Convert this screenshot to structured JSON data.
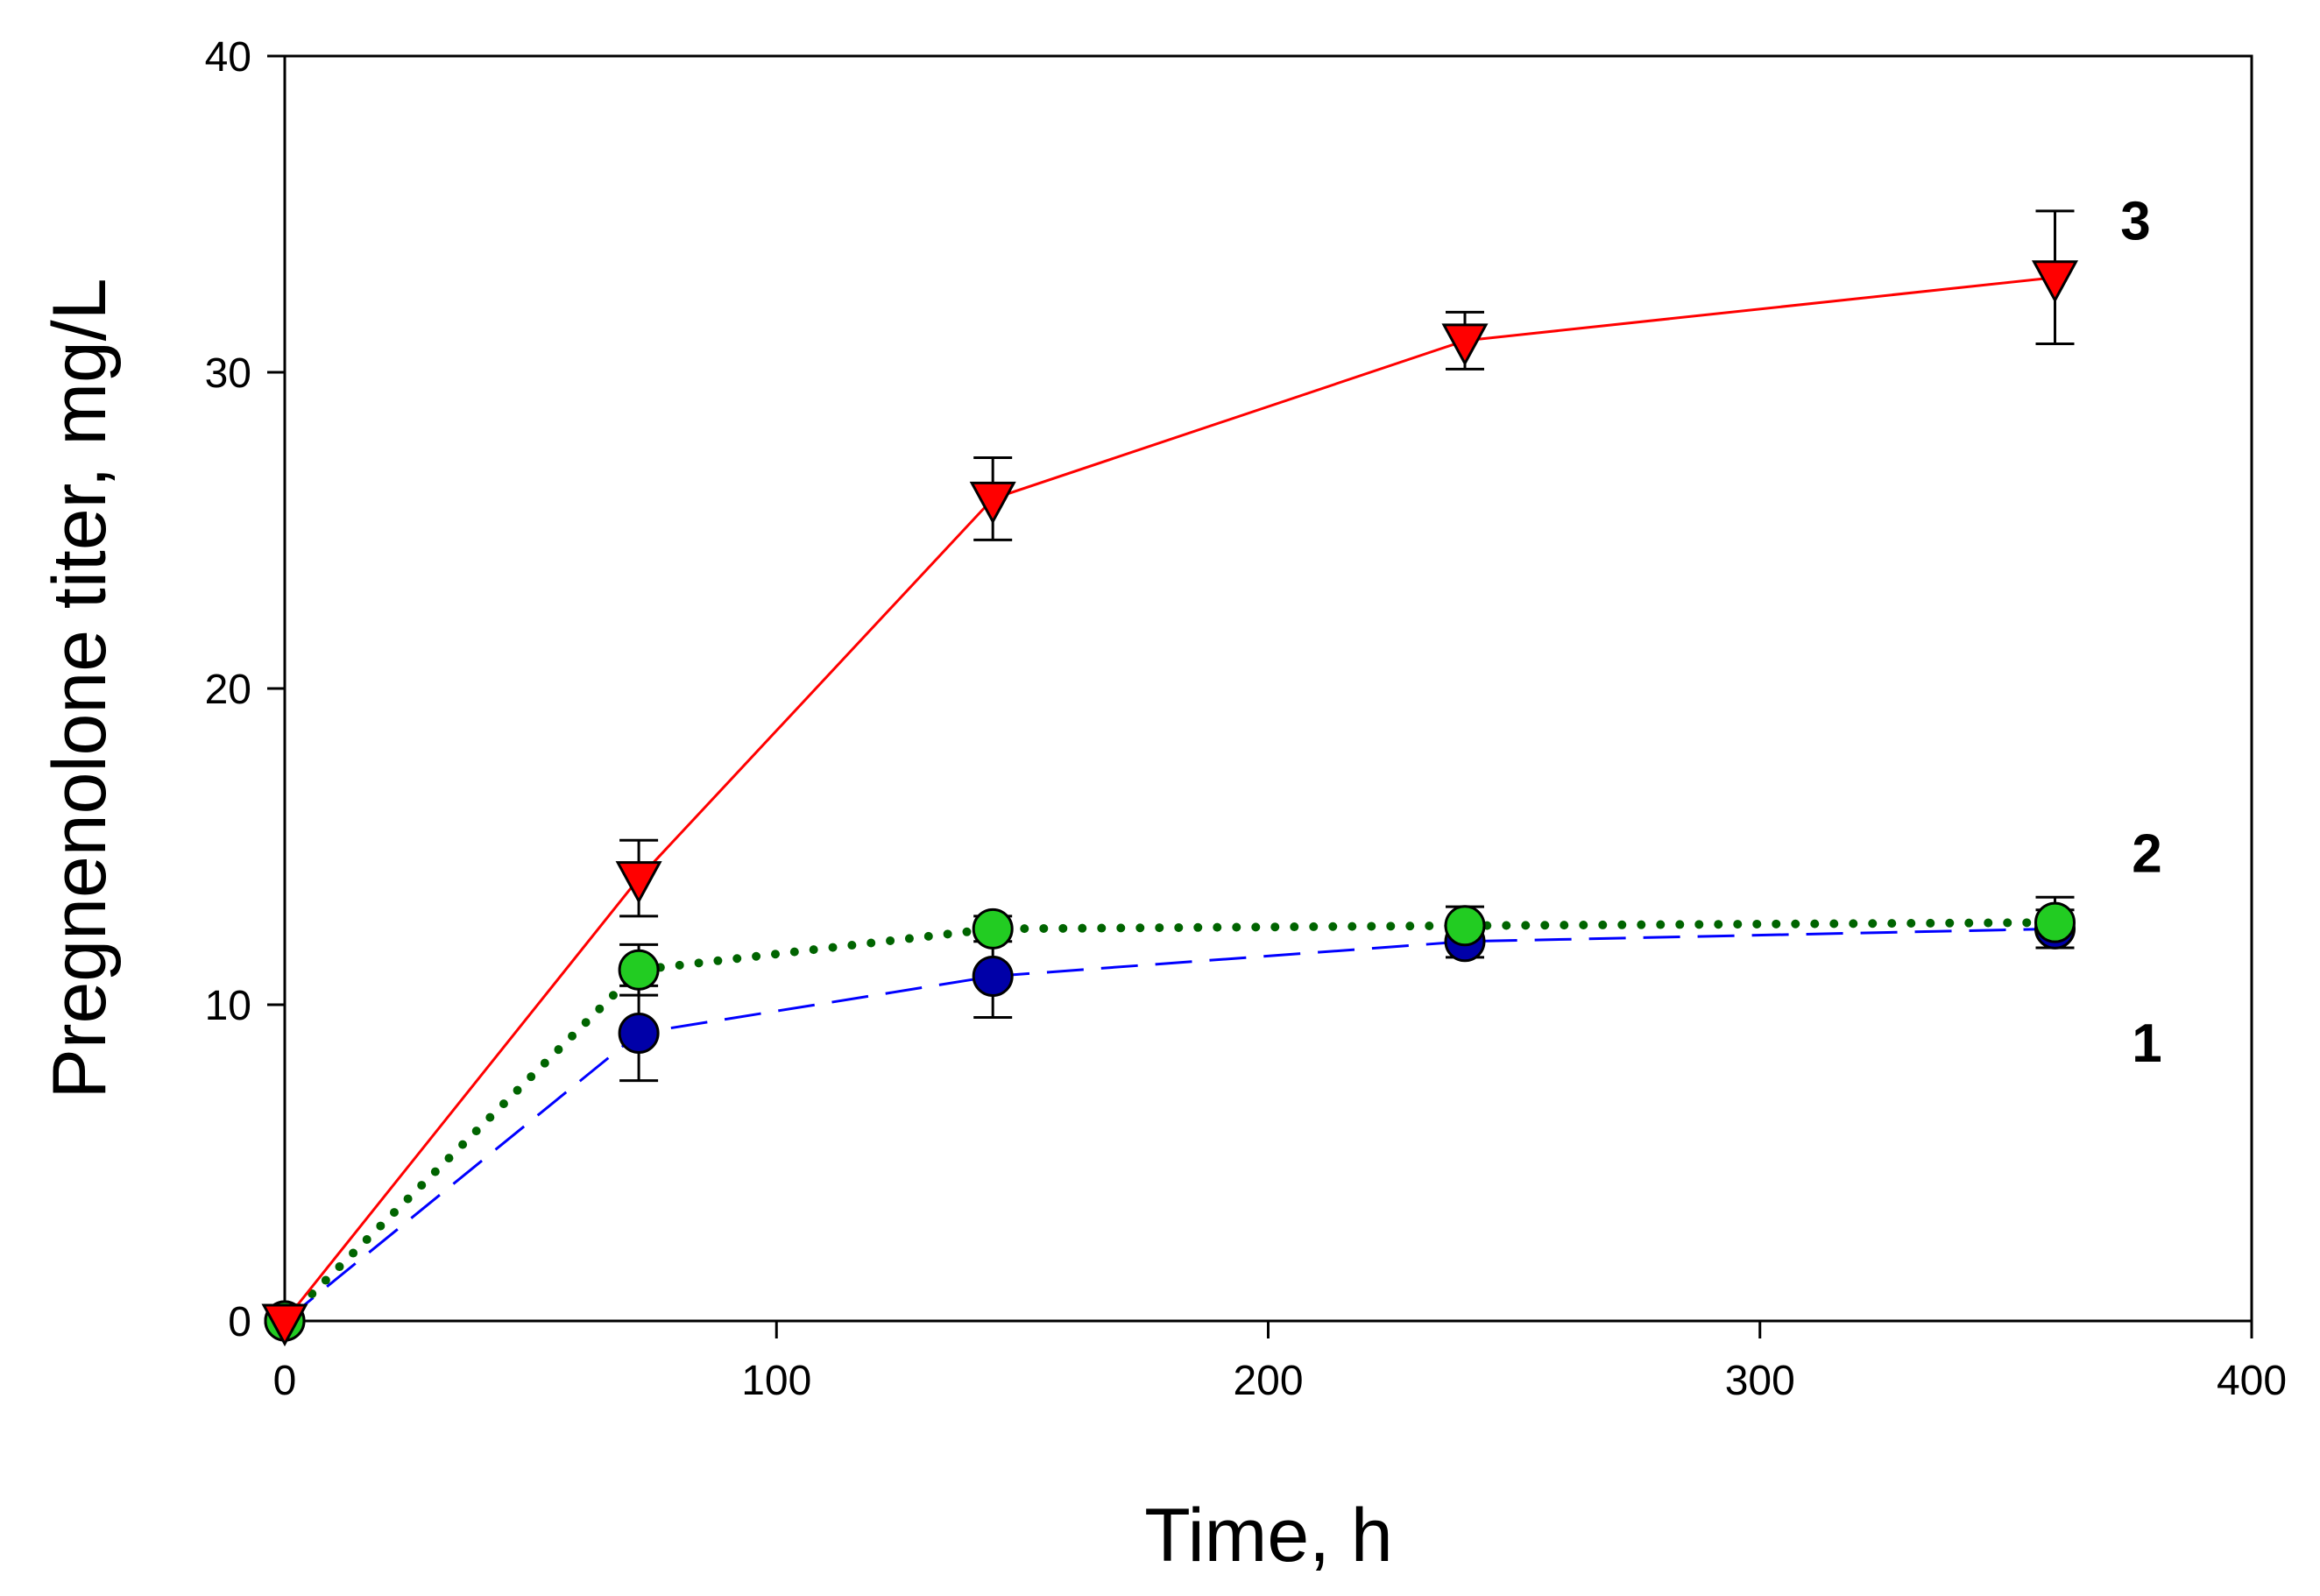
{
  "chart_data": {
    "type": "line",
    "title": "",
    "xlabel": "Time, h",
    "ylabel": "Pregnenolone titer, mg/L",
    "xlim": [
      0,
      400
    ],
    "ylim": [
      0,
      40
    ],
    "xticks": [
      0,
      100,
      200,
      300,
      400
    ],
    "yticks": [
      0,
      10,
      20,
      30,
      40
    ],
    "grid": false,
    "legend": "none (curves labeled at right end)",
    "series": [
      {
        "name": "1",
        "label": "1",
        "color": "#0000ff",
        "marker": "circle",
        "marker_fill": "#0000a8",
        "line_style": "dashed",
        "x": [
          0,
          72,
          144,
          240,
          360
        ],
        "y": [
          0,
          9.1,
          10.9,
          12.0,
          12.4
        ],
        "err": [
          0,
          1.5,
          1.3,
          0.5,
          0.6
        ]
      },
      {
        "name": "2",
        "label": "2",
        "color": "#006400",
        "marker": "circle",
        "marker_fill": "#22cc22",
        "line_style": "dotted",
        "x": [
          0,
          72,
          144,
          240,
          360
        ],
        "y": [
          0,
          11.1,
          12.4,
          12.5,
          12.6
        ],
        "err": [
          0,
          0.8,
          0.4,
          0.6,
          0.8
        ]
      },
      {
        "name": "3",
        "label": "3",
        "color": "#ff0000",
        "marker": "triangle-down",
        "marker_fill": "#ff0000",
        "line_style": "solid",
        "x": [
          0,
          72,
          144,
          240,
          360
        ],
        "y": [
          0,
          14.0,
          26.0,
          31.0,
          33.0
        ],
        "err": [
          0,
          1.2,
          1.3,
          0.9,
          2.1
        ]
      }
    ]
  }
}
